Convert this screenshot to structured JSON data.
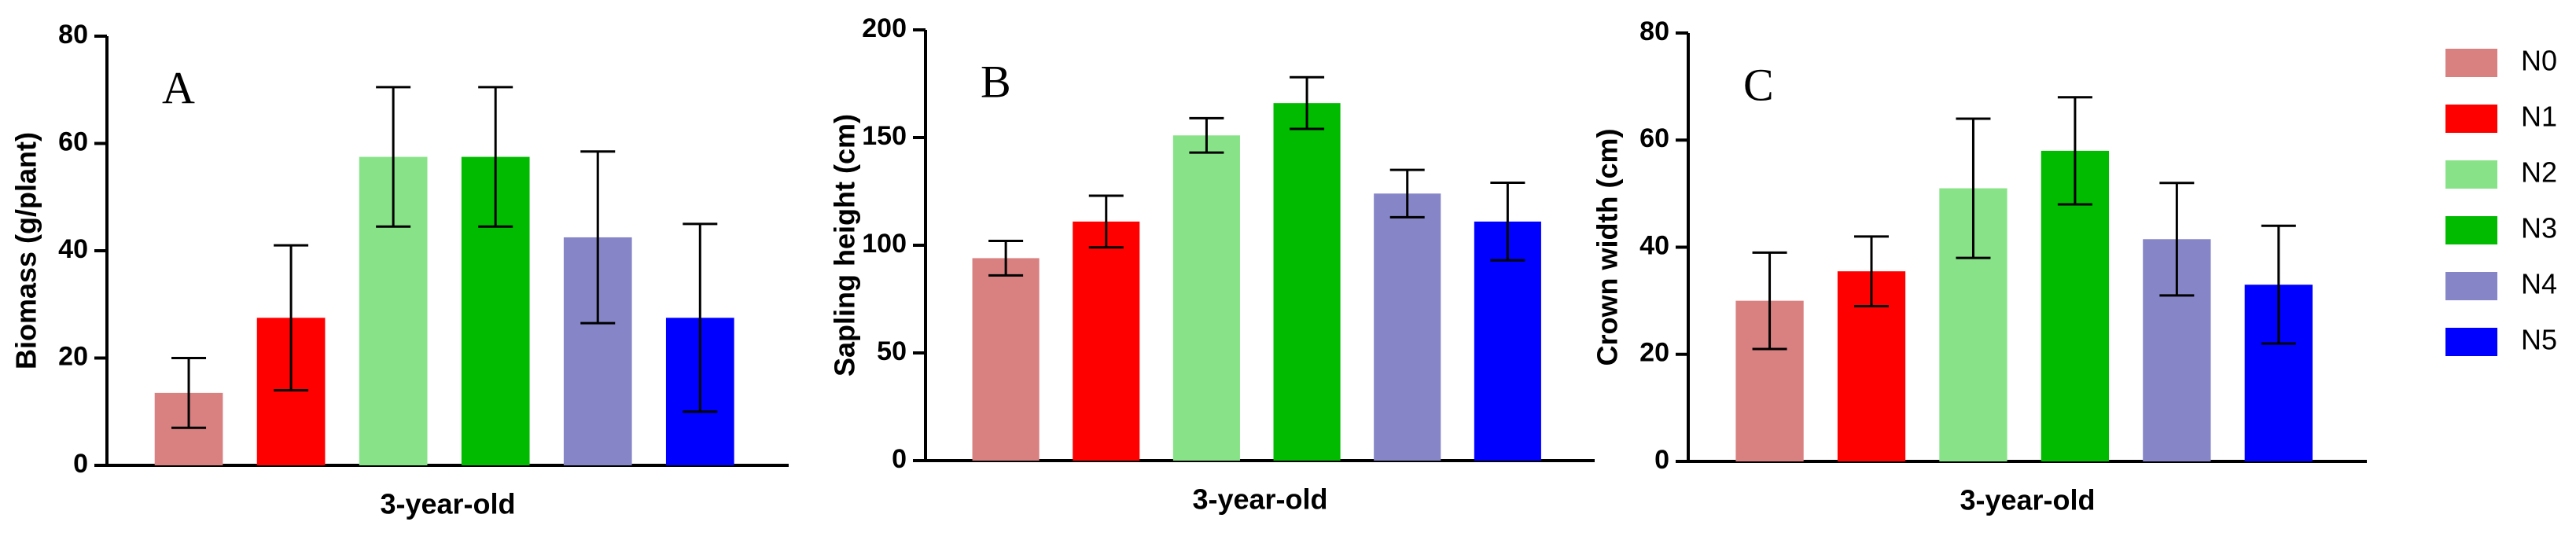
{
  "chart_data": [
    {
      "type": "bar",
      "annotation": "A",
      "y_label": "Biomass (g/plant)",
      "categories": [
        "3-year-old"
      ],
      "ylim": [
        0,
        80
      ],
      "yticks": [
        0,
        20,
        40,
        60,
        80
      ],
      "series": [
        {
          "name": "N0",
          "color": "#d98080",
          "values": [
            13.5
          ],
          "errors": [
            6.5
          ]
        },
        {
          "name": "N1",
          "color": "#ff0000",
          "values": [
            27.5
          ],
          "errors": [
            13.5
          ]
        },
        {
          "name": "N2",
          "color": "#88e388",
          "values": [
            57.5
          ],
          "errors": [
            13
          ]
        },
        {
          "name": "N3",
          "color": "#00bb00",
          "values": [
            57.5
          ],
          "errors": [
            13
          ]
        },
        {
          "name": "N4",
          "color": "#8585c8",
          "values": [
            42.5
          ],
          "errors": [
            16
          ]
        },
        {
          "name": "N5",
          "color": "#0000ff",
          "values": [
            27.5
          ],
          "errors": [
            17.5
          ]
        }
      ]
    },
    {
      "type": "bar",
      "annotation": "B",
      "y_label": "Sapling height (cm)",
      "categories": [
        "3-year-old"
      ],
      "ylim": [
        0,
        200
      ],
      "yticks": [
        0,
        50,
        100,
        150,
        200
      ],
      "series": [
        {
          "name": "N0",
          "color": "#d98080",
          "values": [
            94
          ],
          "errors": [
            8
          ]
        },
        {
          "name": "N1",
          "color": "#ff0000",
          "values": [
            111
          ],
          "errors": [
            12
          ]
        },
        {
          "name": "N2",
          "color": "#88e388",
          "values": [
            151
          ],
          "errors": [
            8
          ]
        },
        {
          "name": "N3",
          "color": "#00bb00",
          "values": [
            166
          ],
          "errors": [
            12
          ]
        },
        {
          "name": "N4",
          "color": "#8585c8",
          "values": [
            124
          ],
          "errors": [
            11
          ]
        },
        {
          "name": "N5",
          "color": "#0000ff",
          "values": [
            111
          ],
          "errors": [
            18
          ]
        }
      ]
    },
    {
      "type": "bar",
      "annotation": "C",
      "y_label": "Crown width (cm)",
      "categories": [
        "3-year-old"
      ],
      "ylim": [
        0,
        80
      ],
      "yticks": [
        0,
        20,
        40,
        60,
        80
      ],
      "series": [
        {
          "name": "N0",
          "color": "#d98080",
          "values": [
            30
          ],
          "errors": [
            9
          ]
        },
        {
          "name": "N1",
          "color": "#ff0000",
          "values": [
            35.5
          ],
          "errors": [
            6.5
          ]
        },
        {
          "name": "N2",
          "color": "#88e388",
          "values": [
            51
          ],
          "errors": [
            13
          ]
        },
        {
          "name": "N3",
          "color": "#00bb00",
          "values": [
            58
          ],
          "errors": [
            10
          ]
        },
        {
          "name": "N4",
          "color": "#8585c8",
          "values": [
            41.5
          ],
          "errors": [
            10.5
          ]
        },
        {
          "name": "N5",
          "color": "#0000ff",
          "values": [
            33
          ],
          "errors": [
            11
          ]
        }
      ]
    }
  ]
}
